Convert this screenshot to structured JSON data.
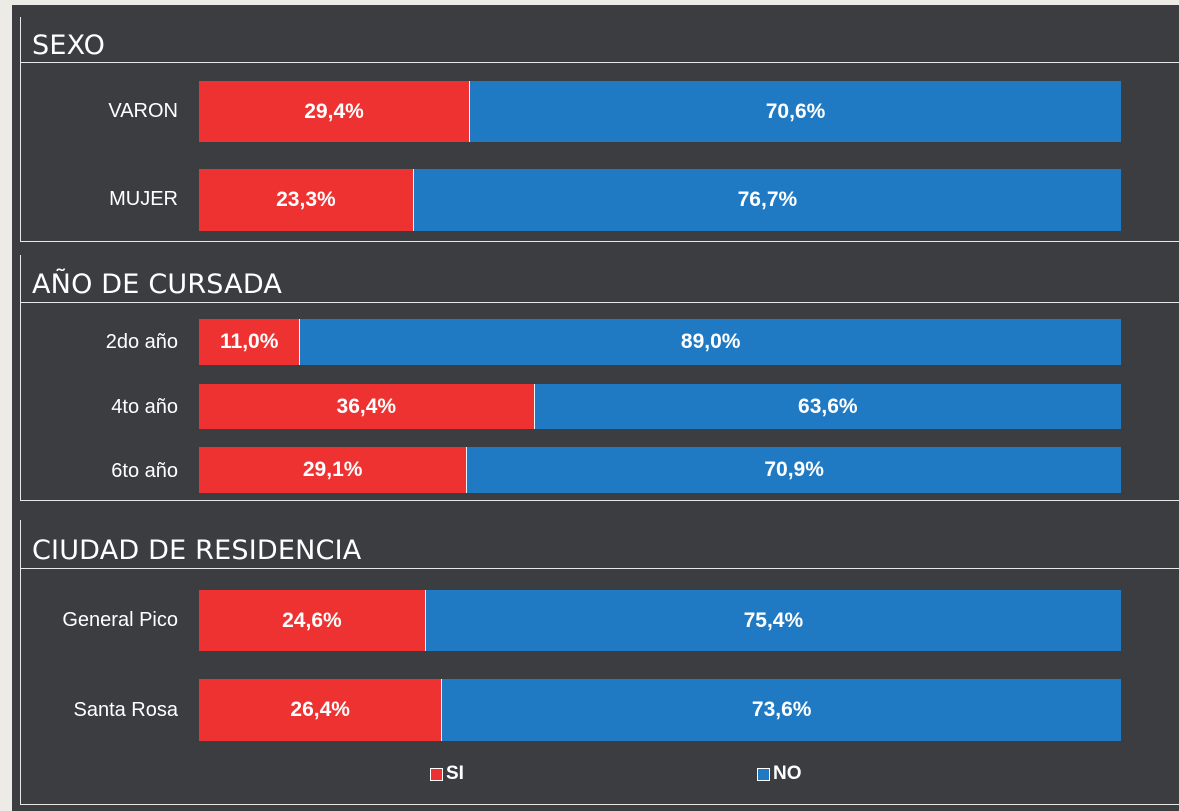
{
  "colors": {
    "si": "#ee3131",
    "no": "#1f7ac3",
    "panel": "#3b3d40"
  },
  "chart_data": {
    "type": "bar",
    "orientation": "horizontal",
    "stacked": "100%",
    "legend": {
      "placement": "bottom",
      "items": [
        {
          "label": "SI",
          "color": "#ee3131"
        },
        {
          "label": "NO",
          "color": "#1f7ac3"
        }
      ]
    },
    "sections": [
      {
        "title": "SEXO",
        "rows": [
          {
            "label": "VARON",
            "si": 29.4,
            "no": 70.6,
            "si_label": "29,4%",
            "no_label": "70,6%"
          },
          {
            "label": "MUJER",
            "si": 23.3,
            "no": 76.7,
            "si_label": "23,3%",
            "no_label": "76,7%"
          }
        ]
      },
      {
        "title": "AÑO DE CURSADA",
        "rows": [
          {
            "label": "2do año",
            "si": 11.0,
            "no": 89.0,
            "si_label": "11,0%",
            "no_label": "89,0%"
          },
          {
            "label": "4to año",
            "si": 36.4,
            "no": 63.6,
            "si_label": "36,4%",
            "no_label": "63,6%"
          },
          {
            "label": "6to año",
            "si": 29.1,
            "no": 70.9,
            "si_label": "29,1%",
            "no_label": "70,9%"
          }
        ]
      },
      {
        "title": "CIUDAD DE RESIDENCIA",
        "rows": [
          {
            "label": "General Pico",
            "si": 24.6,
            "no": 75.4,
            "si_label": "24,6%",
            "no_label": "75,4%"
          },
          {
            "label": "Santa Rosa",
            "si": 26.4,
            "no": 73.6,
            "si_label": "26,4%",
            "no_label": "73,6%"
          }
        ]
      }
    ]
  }
}
